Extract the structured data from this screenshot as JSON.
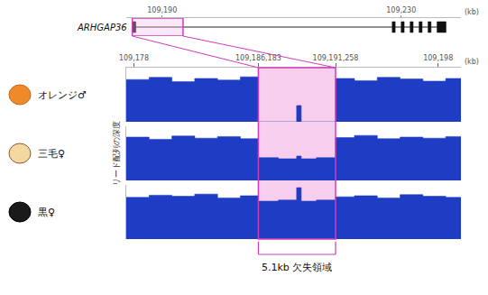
{
  "chart_data": {
    "type": "area",
    "tick_labels": "x",
    "color": "#1f3cc4",
    "y_label": "リード配列の深度",
    "x": [
      109177.5,
      109179,
      109180.5,
      109182,
      109183.5,
      109185,
      109186.183,
      109187.5,
      109188.7,
      109189,
      109190,
      109191.258,
      109192.5,
      109194,
      109195.5,
      109197,
      109198.5,
      109199.5
    ],
    "xlim": [
      109177.5,
      109199.5
    ],
    "xticks": [
      {
        "value": 109178,
        "label": "109,178"
      },
      {
        "value": 109186.183,
        "label": "109,186,183"
      },
      {
        "value": 109191.258,
        "label": "109,191,258"
      },
      {
        "value": 109198,
        "label": "109,198"
      }
    ],
    "x_unit": "(kb)",
    "ylim": [
      0,
      1
    ],
    "series": [
      {
        "name": "オレンジ♂",
        "values": [
          0.78,
          0.82,
          0.74,
          0.8,
          0.77,
          0.83,
          0,
          0,
          0.3,
          0,
          0,
          0.8,
          0.76,
          0.82,
          0.79,
          0.75,
          0.8,
          0.8
        ]
      },
      {
        "name": "三毛♀",
        "values": [
          0.8,
          0.76,
          0.82,
          0.78,
          0.81,
          0.77,
          0.42,
          0.4,
          0.45,
          0.4,
          0.42,
          0.79,
          0.83,
          0.77,
          0.8,
          0.78,
          0.81,
          0.81
        ]
      },
      {
        "name": "黒♀",
        "values": [
          0.77,
          0.81,
          0.79,
          0.83,
          0.76,
          0.8,
          0.7,
          0.72,
          0.95,
          0.7,
          0.72,
          0.78,
          0.8,
          0.76,
          0.82,
          0.79,
          0.77,
          0.77
        ]
      }
    ],
    "deletion": {
      "start": 109186.183,
      "end": 109191.258,
      "label": "5.1kb 欠失領域"
    },
    "gene": {
      "name": "ARHGAP36",
      "start": 109185,
      "end": 109237.5,
      "exons": [
        [
          109185,
          109185.6
        ],
        [
          109228.5,
          109229
        ],
        [
          109230,
          109230.5
        ],
        [
          109231.5,
          109232
        ],
        [
          109233,
          109233.5
        ],
        [
          109234.5,
          109235
        ],
        [
          109236,
          109237.5
        ]
      ],
      "zoom_region": [
        109185,
        109193.5
      ],
      "xlim": [
        109184,
        109240
      ],
      "xticks": [
        {
          "value": 109190,
          "label": "109,190"
        },
        {
          "value": 109230,
          "label": "109,230"
        }
      ],
      "x_unit": "(kb)"
    }
  }
}
